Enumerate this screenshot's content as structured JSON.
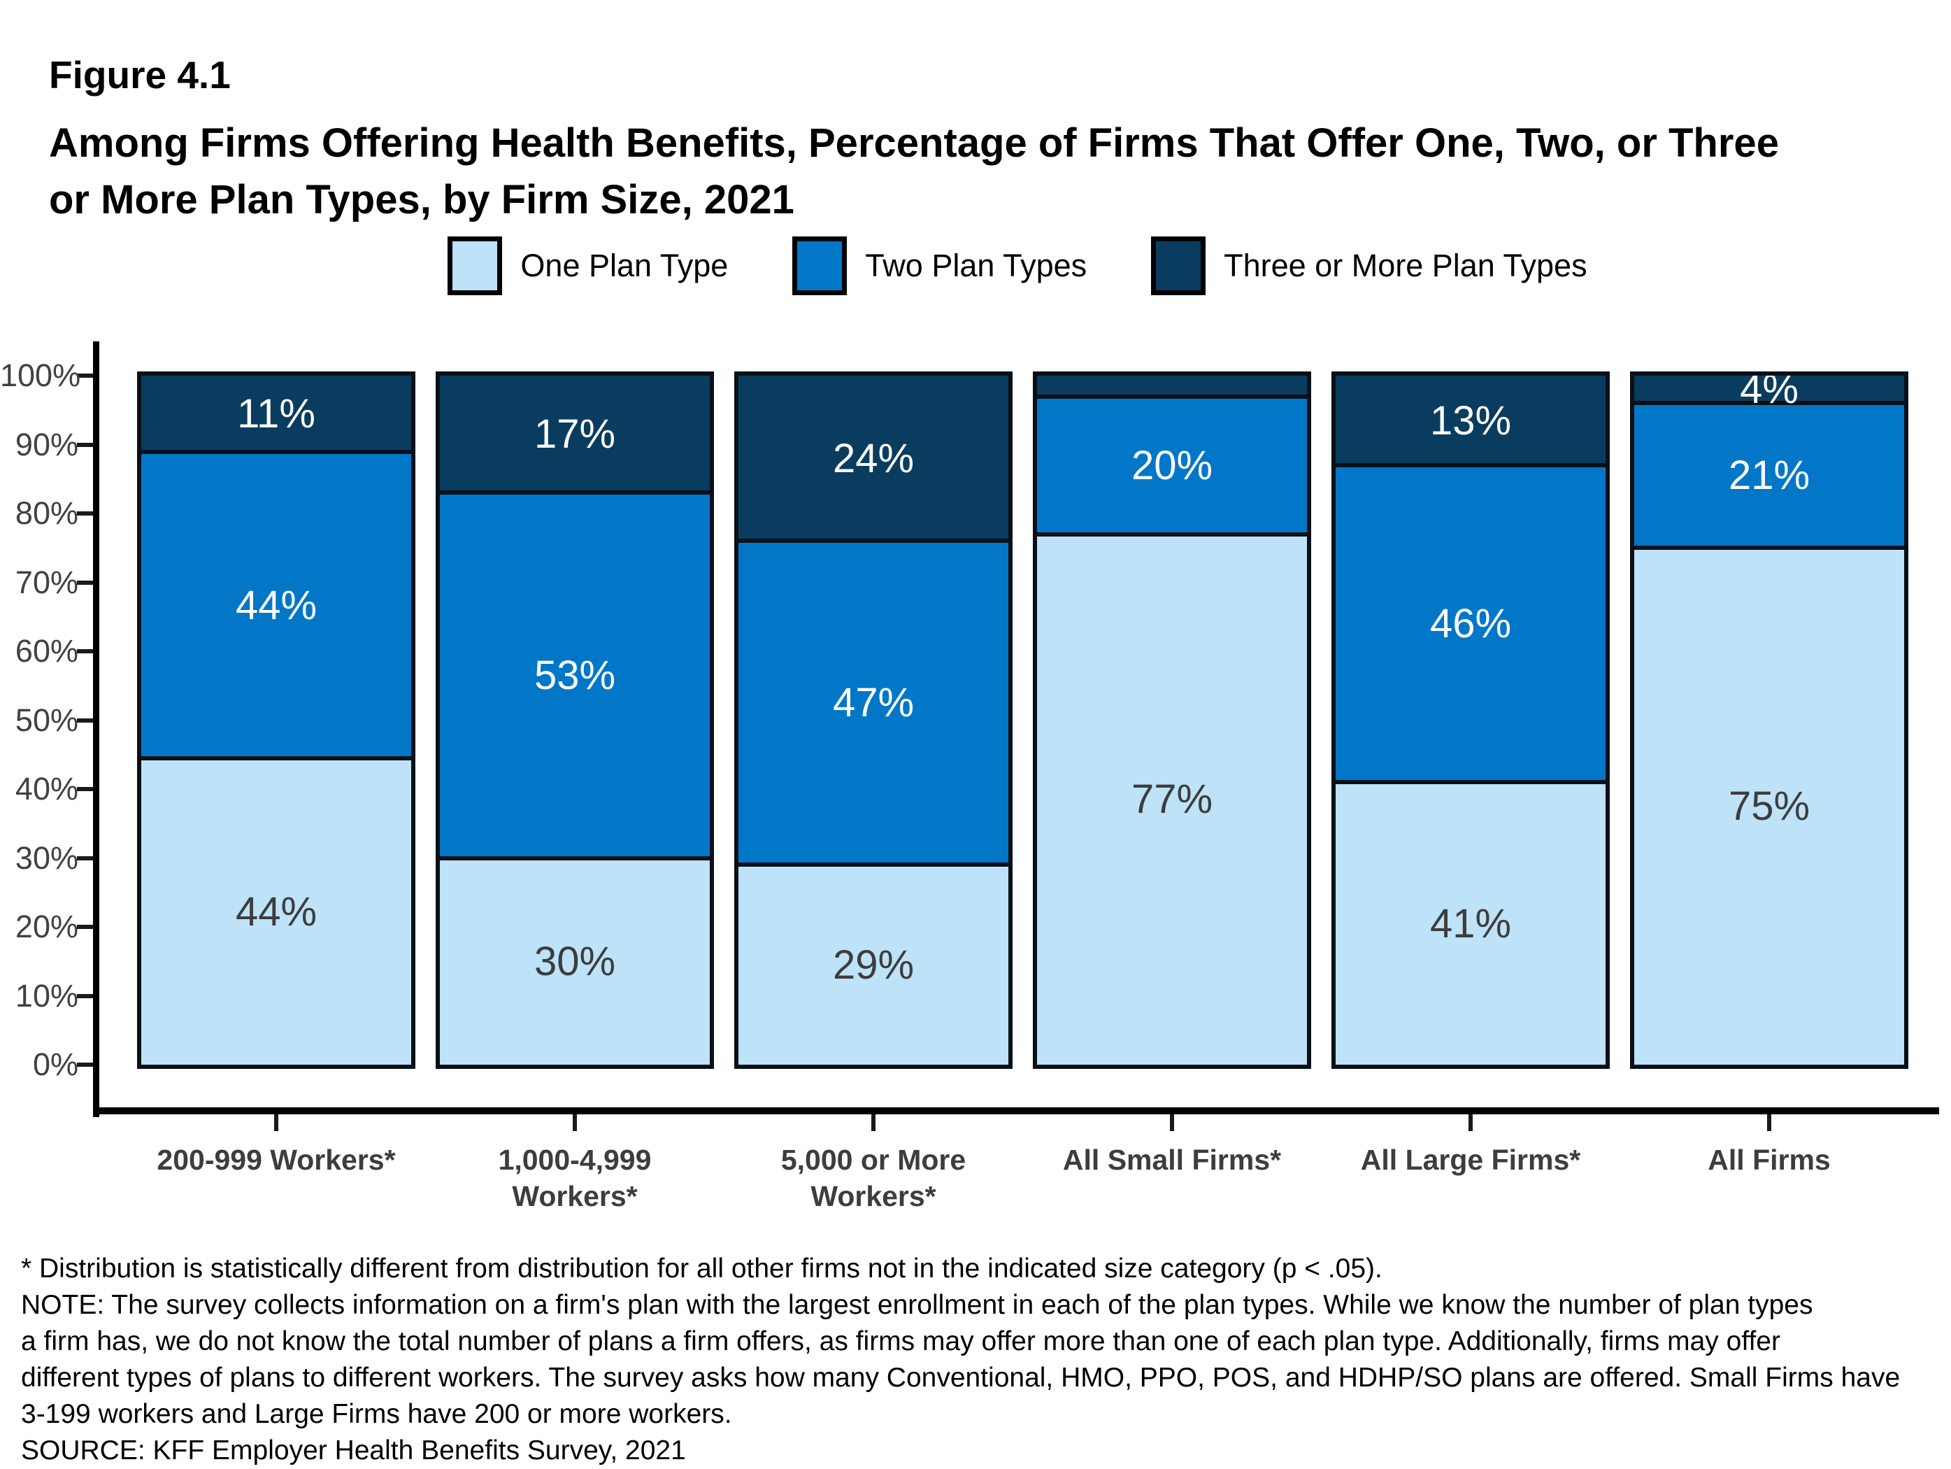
{
  "header": {
    "figure_label": "Figure 4.1",
    "title_line1": "Among Firms Offering Health Benefits, Percentage of Firms That Offer One, Two, or Three",
    "title_line2": "or More Plan Types, by Firm Size, 2021"
  },
  "chart_data": {
    "type": "bar",
    "subtype": "stacked-100",
    "categories": [
      "200-999 Workers*",
      "1,000-4,999\nWorkers*",
      "5,000 or More\nWorkers*",
      "All Small Firms*",
      "All Large Firms*",
      "All Firms"
    ],
    "series": [
      {
        "name": "One Plan Type",
        "color": "#BEE2F8",
        "label_color": "#3D3D3D",
        "values": [
          44,
          30,
          29,
          77,
          41,
          75
        ],
        "labels": [
          "44%",
          "30%",
          "29%",
          "77%",
          "41%",
          "75%"
        ]
      },
      {
        "name": "Two Plan Types",
        "color": "#0277C8",
        "label_color": "#FFFFFF",
        "values": [
          44,
          53,
          47,
          20,
          46,
          21
        ],
        "labels": [
          "44%",
          "53%",
          "47%",
          "20%",
          "46%",
          "21%"
        ]
      },
      {
        "name": "Three or More Plan Types",
        "color": "#0A3C5F",
        "label_color": "#FFFFFF",
        "values": [
          11,
          17,
          24,
          3,
          13,
          4
        ],
        "labels": [
          "11%",
          "17%",
          "24%",
          "",
          "13%",
          "4%"
        ]
      }
    ],
    "xlabel": "",
    "ylabel": "",
    "ylim": [
      0,
      100
    ],
    "yticks": [
      "0%",
      "10%",
      "20%",
      "30%",
      "40%",
      "50%",
      "60%",
      "70%",
      "80%",
      "90%",
      "100%"
    ],
    "grid": false,
    "legend_position": "top-center",
    "bar_outline_color": "#0A1018",
    "axis_color": "#000000",
    "tick_label_color": "#3F4245",
    "category_label_color": "#3D3D3D"
  },
  "footnotes": {
    "lines": [
      "* Distribution is statistically different from distribution for all other firms not in the indicated size category (p < .05).",
      "NOTE: The survey collects information on a firm's plan with the largest enrollment in each of the plan types. While we know the number of plan types",
      "a firm has, we do not know the total number of plans a firm offers, as firms may offer more than one of each plan type. Additionally, firms may offer",
      "different types of plans to different workers. The survey asks how many Conventional, HMO, PPO, POS, and HDHP/SO plans are offered. Small Firms have",
      "3-199 workers and Large Firms have 200 or more workers.",
      "SOURCE: KFF Employer Health Benefits Survey, 2021"
    ]
  }
}
